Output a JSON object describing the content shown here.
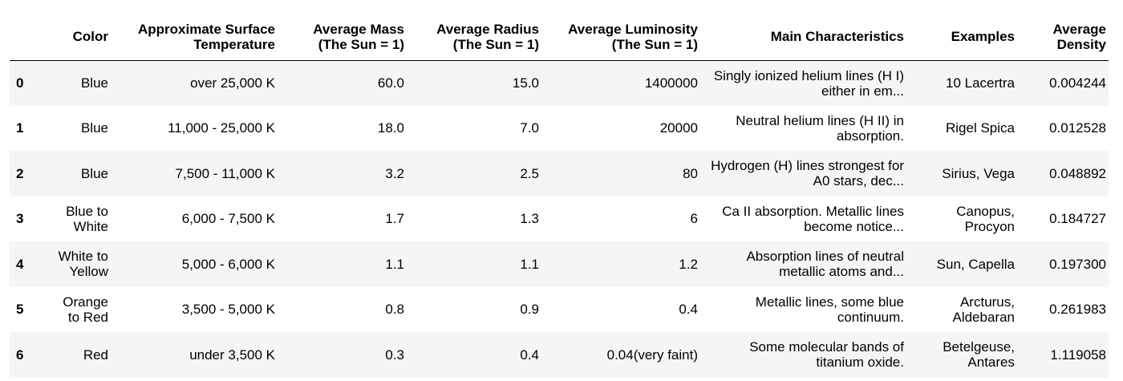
{
  "table": {
    "columns": [
      "Color",
      "Approximate Surface Temperature",
      "Average Mass (The Sun = 1)",
      "Average Radius (The Sun = 1)",
      "Average Luminosity (The Sun = 1)",
      "Main Characteristics",
      "Examples",
      "Average Density"
    ],
    "rows": [
      {
        "index": "0",
        "color": "Blue",
        "temperature": "over 25,000 K",
        "mass": "60.0",
        "radius": "15.0",
        "luminosity": "1400000",
        "characteristics": "Singly ionized helium lines (H I) either in em...",
        "examples": "10 Lacertra",
        "density": "0.004244"
      },
      {
        "index": "1",
        "color": "Blue",
        "temperature": "11,000 - 25,000 K",
        "mass": "18.0",
        "radius": "7.0",
        "luminosity": "20000",
        "characteristics": "Neutral helium lines (H II) in absorption.",
        "examples": "Rigel Spica",
        "density": "0.012528"
      },
      {
        "index": "2",
        "color": "Blue",
        "temperature": "7,500 - 11,000 K",
        "mass": "3.2",
        "radius": "2.5",
        "luminosity": "80",
        "characteristics": "Hydrogen (H) lines strongest for A0 stars, dec...",
        "examples": "Sirius, Vega",
        "density": "0.048892"
      },
      {
        "index": "3",
        "color": "Blue to White",
        "temperature": "6,000 - 7,500 K",
        "mass": "1.7",
        "radius": "1.3",
        "luminosity": "6",
        "characteristics": "Ca II absorption. Metallic lines become notice...",
        "examples": "Canopus, Procyon",
        "density": "0.184727"
      },
      {
        "index": "4",
        "color": "White to Yellow",
        "temperature": "5,000 - 6,000 K",
        "mass": "1.1",
        "radius": "1.1",
        "luminosity": "1.2",
        "characteristics": "Absorption lines of neutral metallic atoms and...",
        "examples": "Sun, Capella",
        "density": "0.197300"
      },
      {
        "index": "5",
        "color": "Orange to Red",
        "temperature": "3,500 - 5,000 K",
        "mass": "0.8",
        "radius": "0.9",
        "luminosity": "0.4",
        "characteristics": "Metallic lines, some blue continuum.",
        "examples": "Arcturus, Aldebaran",
        "density": "0.261983"
      },
      {
        "index": "6",
        "color": "Red",
        "temperature": "under 3,500 K",
        "mass": "0.3",
        "radius": "0.4",
        "luminosity": "0.04(very faint)",
        "characteristics": "Some molecular bands of titanium oxide.",
        "examples": "Betelgeuse, Antares",
        "density": "1.119058"
      }
    ]
  }
}
